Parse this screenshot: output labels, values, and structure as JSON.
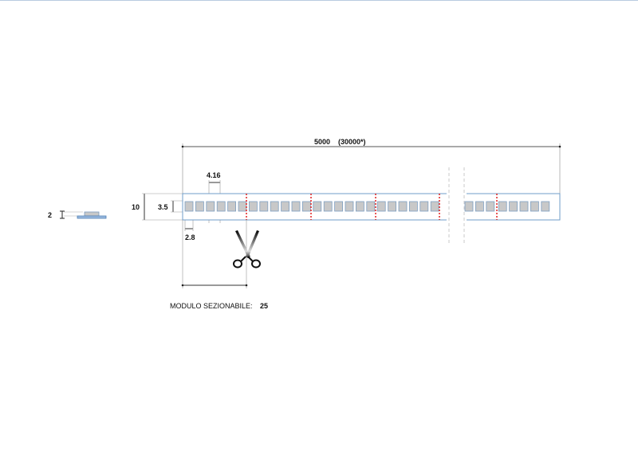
{
  "dimensions": {
    "length": "5000",
    "length_max": "(30000*)",
    "pitch": "4.16",
    "led_width": "2.8",
    "height": "10",
    "led_height": "3.5",
    "thickness": "2"
  },
  "module_label": "MODULO SEZIONABILE:",
  "module_value": "25",
  "colors": {
    "strip_border": "#6f9cc9",
    "led_fill": "#c8c8c8",
    "cut_line": "#e02020",
    "dim_line": "#333333"
  }
}
